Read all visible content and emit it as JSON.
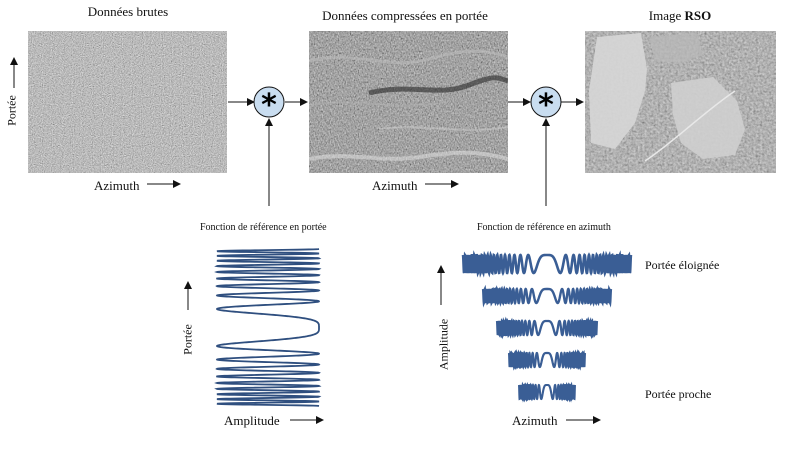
{
  "titles": {
    "raw": "Données brutes",
    "range_compressed": "Données compressées en portée",
    "sar_prefix": "Image ",
    "sar_bold": "RSO"
  },
  "axes": {
    "range": "Portée",
    "azimuth": "Azimuth",
    "amplitude": "Amplitude"
  },
  "reference": {
    "range_label": "Fonction de référence en portée",
    "azimuth_label": "Fonction de référence en azimuth"
  },
  "chirp_rows": {
    "far": "Portée éloignée",
    "near": "Portée proche"
  },
  "operators": {
    "convolution_symbol": "*"
  }
}
